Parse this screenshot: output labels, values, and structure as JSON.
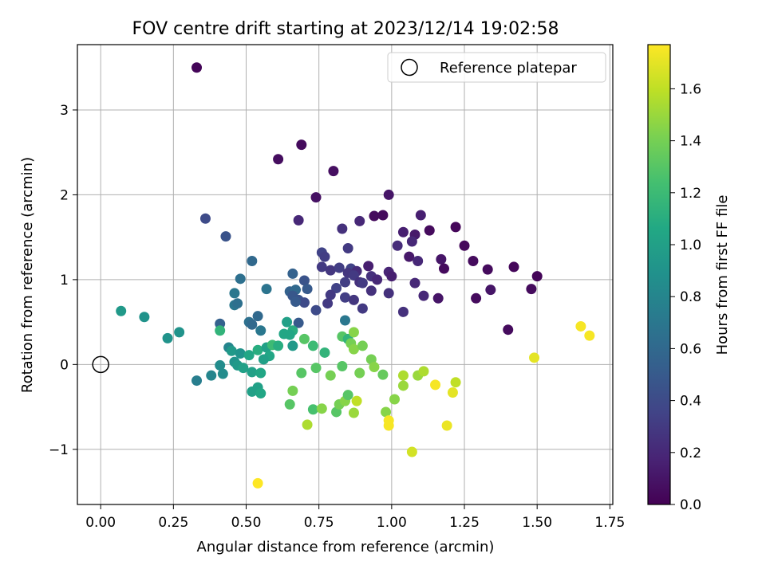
{
  "chart_data": {
    "type": "scatter",
    "title": "FOV centre drift starting at 2023/12/14 19:02:58",
    "xlabel": "Angular distance from reference (arcmin)",
    "ylabel": "Rotation from reference (arcmin)",
    "xlim": [
      -0.08,
      1.76
    ],
    "ylim": [
      -1.65,
      3.77
    ],
    "xticks": [
      0.0,
      0.25,
      0.5,
      0.75,
      1.0,
      1.25,
      1.5,
      1.75
    ],
    "xtick_labels": [
      "0.00",
      "0.25",
      "0.50",
      "0.75",
      "1.00",
      "1.25",
      "1.50",
      "1.75"
    ],
    "yticks": [
      -1,
      0,
      1,
      2,
      3
    ],
    "ytick_labels": [
      "−1",
      "0",
      "1",
      "2",
      "3"
    ],
    "grid": true,
    "legend": {
      "position": "top-right",
      "entries": [
        "Reference platepar"
      ]
    },
    "reference": {
      "name": "Reference platepar",
      "x": 0.0,
      "y": 0.0,
      "marker": "open-circle"
    },
    "colorbar": {
      "label": "Hours from first FF file",
      "colormap": "viridis",
      "range": [
        0.0,
        1.77
      ],
      "ticks": [
        0.0,
        0.2,
        0.4,
        0.6,
        0.8,
        1.0,
        1.2,
        1.4,
        1.6
      ],
      "tick_labels": [
        "0.0",
        "0.2",
        "0.4",
        "0.6",
        "0.8",
        "1.0",
        "1.2",
        "1.4",
        "1.6"
      ]
    },
    "points": [
      {
        "x": 0.33,
        "y": 3.5,
        "c": 0.02
      },
      {
        "x": 0.69,
        "y": 2.59,
        "c": 0.05
      },
      {
        "x": 0.61,
        "y": 2.42,
        "c": 0.06
      },
      {
        "x": 0.8,
        "y": 2.28,
        "c": 0.07
      },
      {
        "x": 0.74,
        "y": 1.97,
        "c": 0.08
      },
      {
        "x": 0.99,
        "y": 2.0,
        "c": 0.1
      },
      {
        "x": 0.94,
        "y": 1.75,
        "c": 0.05
      },
      {
        "x": 0.97,
        "y": 1.76,
        "c": 0.05
      },
      {
        "x": 1.1,
        "y": 1.76,
        "c": 0.15
      },
      {
        "x": 0.68,
        "y": 1.7,
        "c": 0.2
      },
      {
        "x": 0.89,
        "y": 1.69,
        "c": 0.2
      },
      {
        "x": 0.83,
        "y": 1.6,
        "c": 0.25
      },
      {
        "x": 1.04,
        "y": 1.56,
        "c": 0.15
      },
      {
        "x": 1.08,
        "y": 1.53,
        "c": 0.12
      },
      {
        "x": 1.13,
        "y": 1.58,
        "c": 0.05
      },
      {
        "x": 1.22,
        "y": 1.62,
        "c": 0.03
      },
      {
        "x": 0.36,
        "y": 1.72,
        "c": 0.4
      },
      {
        "x": 0.43,
        "y": 1.51,
        "c": 0.45
      },
      {
        "x": 1.02,
        "y": 1.4,
        "c": 0.22
      },
      {
        "x": 1.07,
        "y": 1.45,
        "c": 0.2
      },
      {
        "x": 1.25,
        "y": 1.4,
        "c": 0.04
      },
      {
        "x": 0.85,
        "y": 1.37,
        "c": 0.3
      },
      {
        "x": 0.76,
        "y": 1.32,
        "c": 0.35
      },
      {
        "x": 0.77,
        "y": 1.27,
        "c": 0.32
      },
      {
        "x": 1.06,
        "y": 1.27,
        "c": 0.12
      },
      {
        "x": 1.09,
        "y": 1.22,
        "c": 0.2
      },
      {
        "x": 1.17,
        "y": 1.24,
        "c": 0.1
      },
      {
        "x": 1.28,
        "y": 1.22,
        "c": 0.05
      },
      {
        "x": 1.33,
        "y": 1.12,
        "c": 0.05
      },
      {
        "x": 1.42,
        "y": 1.15,
        "c": 0.03
      },
      {
        "x": 1.18,
        "y": 1.13,
        "c": 0.05
      },
      {
        "x": 0.76,
        "y": 1.15,
        "c": 0.3
      },
      {
        "x": 0.79,
        "y": 1.11,
        "c": 0.28
      },
      {
        "x": 0.82,
        "y": 1.14,
        "c": 0.32
      },
      {
        "x": 0.86,
        "y": 1.13,
        "c": 0.35
      },
      {
        "x": 0.88,
        "y": 1.1,
        "c": 0.22
      },
      {
        "x": 0.92,
        "y": 1.16,
        "c": 0.15
      },
      {
        "x": 0.85,
        "y": 1.08,
        "c": 0.28
      },
      {
        "x": 0.87,
        "y": 1.05,
        "c": 0.3
      },
      {
        "x": 0.93,
        "y": 1.04,
        "c": 0.25
      },
      {
        "x": 0.95,
        "y": 1.0,
        "c": 0.2
      },
      {
        "x": 0.99,
        "y": 1.09,
        "c": 0.18
      },
      {
        "x": 1.0,
        "y": 1.04,
        "c": 0.15
      },
      {
        "x": 0.89,
        "y": 0.97,
        "c": 0.25
      },
      {
        "x": 0.9,
        "y": 0.96,
        "c": 0.3
      },
      {
        "x": 0.84,
        "y": 0.97,
        "c": 0.32
      },
      {
        "x": 0.81,
        "y": 0.9,
        "c": 0.35
      },
      {
        "x": 1.5,
        "y": 1.04,
        "c": 0.02
      },
      {
        "x": 1.08,
        "y": 0.96,
        "c": 0.2
      },
      {
        "x": 0.52,
        "y": 1.22,
        "c": 0.6
      },
      {
        "x": 0.66,
        "y": 1.07,
        "c": 0.55
      },
      {
        "x": 0.7,
        "y": 0.99,
        "c": 0.45
      },
      {
        "x": 0.48,
        "y": 1.01,
        "c": 0.65
      },
      {
        "x": 0.57,
        "y": 0.89,
        "c": 0.68
      },
      {
        "x": 0.65,
        "y": 0.86,
        "c": 0.55
      },
      {
        "x": 0.67,
        "y": 0.88,
        "c": 0.6
      },
      {
        "x": 0.71,
        "y": 0.89,
        "c": 0.5
      },
      {
        "x": 0.66,
        "y": 0.81,
        "c": 0.48
      },
      {
        "x": 0.68,
        "y": 0.76,
        "c": 0.45
      },
      {
        "x": 0.7,
        "y": 0.73,
        "c": 0.4
      },
      {
        "x": 0.67,
        "y": 0.74,
        "c": 0.5
      },
      {
        "x": 0.79,
        "y": 0.82,
        "c": 0.3
      },
      {
        "x": 0.84,
        "y": 0.79,
        "c": 0.32
      },
      {
        "x": 0.87,
        "y": 0.76,
        "c": 0.28
      },
      {
        "x": 0.78,
        "y": 0.72,
        "c": 0.3
      },
      {
        "x": 0.93,
        "y": 0.87,
        "c": 0.25
      },
      {
        "x": 0.99,
        "y": 0.84,
        "c": 0.25
      },
      {
        "x": 1.11,
        "y": 0.81,
        "c": 0.2
      },
      {
        "x": 1.16,
        "y": 0.78,
        "c": 0.1
      },
      {
        "x": 1.34,
        "y": 0.88,
        "c": 0.1
      },
      {
        "x": 1.29,
        "y": 0.78,
        "c": 0.05
      },
      {
        "x": 1.48,
        "y": 0.89,
        "c": 0.05
      },
      {
        "x": 0.9,
        "y": 0.66,
        "c": 0.3
      },
      {
        "x": 0.74,
        "y": 0.64,
        "c": 0.4
      },
      {
        "x": 1.04,
        "y": 0.62,
        "c": 0.25
      },
      {
        "x": 0.46,
        "y": 0.84,
        "c": 0.7
      },
      {
        "x": 0.46,
        "y": 0.7,
        "c": 0.7
      },
      {
        "x": 0.47,
        "y": 0.72,
        "c": 0.65
      },
      {
        "x": 0.54,
        "y": 0.57,
        "c": 0.6
      },
      {
        "x": 0.51,
        "y": 0.5,
        "c": 0.65
      },
      {
        "x": 0.52,
        "y": 0.47,
        "c": 0.6
      },
      {
        "x": 0.55,
        "y": 0.4,
        "c": 0.7
      },
      {
        "x": 0.41,
        "y": 0.48,
        "c": 0.55
      },
      {
        "x": 0.68,
        "y": 0.49,
        "c": 0.5
      },
      {
        "x": 0.84,
        "y": 0.52,
        "c": 0.7
      },
      {
        "x": 0.64,
        "y": 0.5,
        "c": 1.0
      },
      {
        "x": 0.66,
        "y": 0.4,
        "c": 1.1
      },
      {
        "x": 0.65,
        "y": 0.35,
        "c": 1.05
      },
      {
        "x": 0.63,
        "y": 0.36,
        "c": 1.05
      },
      {
        "x": 0.41,
        "y": 0.4,
        "c": 1.15
      },
      {
        "x": 0.07,
        "y": 0.63,
        "c": 0.95
      },
      {
        "x": 0.15,
        "y": 0.56,
        "c": 0.9
      },
      {
        "x": 0.27,
        "y": 0.38,
        "c": 0.9
      },
      {
        "x": 0.23,
        "y": 0.31,
        "c": 0.9
      },
      {
        "x": 0.44,
        "y": 0.2,
        "c": 0.8
      },
      {
        "x": 0.45,
        "y": 0.16,
        "c": 0.95
      },
      {
        "x": 0.48,
        "y": 0.13,
        "c": 0.9
      },
      {
        "x": 0.51,
        "y": 0.11,
        "c": 1.05
      },
      {
        "x": 0.54,
        "y": 0.17,
        "c": 1.1
      },
      {
        "x": 0.57,
        "y": 0.2,
        "c": 1.0
      },
      {
        "x": 0.59,
        "y": 0.23,
        "c": 1.2
      },
      {
        "x": 0.61,
        "y": 0.22,
        "c": 1.1
      },
      {
        "x": 0.58,
        "y": 0.1,
        "c": 1.05
      },
      {
        "x": 0.56,
        "y": 0.06,
        "c": 1.0
      },
      {
        "x": 0.66,
        "y": 0.22,
        "c": 0.95
      },
      {
        "x": 0.7,
        "y": 0.3,
        "c": 1.3
      },
      {
        "x": 0.73,
        "y": 0.22,
        "c": 1.2
      },
      {
        "x": 0.77,
        "y": 0.14,
        "c": 1.15
      },
      {
        "x": 0.83,
        "y": 0.33,
        "c": 1.3
      },
      {
        "x": 0.85,
        "y": 0.3,
        "c": 1.15
      },
      {
        "x": 0.87,
        "y": 0.38,
        "c": 1.45
      },
      {
        "x": 0.86,
        "y": 0.25,
        "c": 1.4
      },
      {
        "x": 0.87,
        "y": 0.18,
        "c": 1.45
      },
      {
        "x": 0.9,
        "y": 0.22,
        "c": 1.4
      },
      {
        "x": 0.93,
        "y": 0.06,
        "c": 1.4
      },
      {
        "x": 0.94,
        "y": -0.03,
        "c": 1.45
      },
      {
        "x": 0.89,
        "y": -0.1,
        "c": 1.4
      },
      {
        "x": 0.97,
        "y": -0.12,
        "c": 1.35
      },
      {
        "x": 0.46,
        "y": 0.03,
        "c": 0.9
      },
      {
        "x": 0.47,
        "y": -0.01,
        "c": 0.95
      },
      {
        "x": 0.49,
        "y": -0.04,
        "c": 1.0
      },
      {
        "x": 0.41,
        "y": -0.01,
        "c": 0.85
      },
      {
        "x": 0.42,
        "y": -0.11,
        "c": 0.85
      },
      {
        "x": 0.38,
        "y": -0.13,
        "c": 0.8
      },
      {
        "x": 0.33,
        "y": -0.19,
        "c": 0.75
      },
      {
        "x": 0.52,
        "y": -0.09,
        "c": 1.0
      },
      {
        "x": 0.55,
        "y": -0.1,
        "c": 1.05
      },
      {
        "x": 0.54,
        "y": -0.27,
        "c": 1.0
      },
      {
        "x": 0.52,
        "y": -0.32,
        "c": 1.0
      },
      {
        "x": 0.55,
        "y": -0.34,
        "c": 1.05
      },
      {
        "x": 0.69,
        "y": -0.1,
        "c": 1.3
      },
      {
        "x": 0.74,
        "y": -0.04,
        "c": 1.3
      },
      {
        "x": 0.79,
        "y": -0.13,
        "c": 1.4
      },
      {
        "x": 0.83,
        "y": -0.02,
        "c": 1.3
      },
      {
        "x": 0.66,
        "y": -0.31,
        "c": 1.4
      },
      {
        "x": 0.65,
        "y": -0.47,
        "c": 1.3
      },
      {
        "x": 0.73,
        "y": -0.53,
        "c": 1.25
      },
      {
        "x": 0.76,
        "y": -0.52,
        "c": 1.45
      },
      {
        "x": 0.71,
        "y": -0.71,
        "c": 1.55
      },
      {
        "x": 0.81,
        "y": -0.56,
        "c": 1.3
      },
      {
        "x": 0.82,
        "y": -0.47,
        "c": 1.4
      },
      {
        "x": 0.84,
        "y": -0.43,
        "c": 1.45
      },
      {
        "x": 0.85,
        "y": -0.36,
        "c": 1.3
      },
      {
        "x": 0.87,
        "y": -0.57,
        "c": 1.5
      },
      {
        "x": 0.88,
        "y": -0.43,
        "c": 1.6
      },
      {
        "x": 0.98,
        "y": -0.56,
        "c": 1.45
      },
      {
        "x": 0.99,
        "y": -0.66,
        "c": 1.75
      },
      {
        "x": 0.99,
        "y": -0.72,
        "c": 1.75
      },
      {
        "x": 1.01,
        "y": -0.41,
        "c": 1.45
      },
      {
        "x": 1.04,
        "y": -0.13,
        "c": 1.55
      },
      {
        "x": 1.04,
        "y": -0.25,
        "c": 1.5
      },
      {
        "x": 1.09,
        "y": -0.13,
        "c": 1.5
      },
      {
        "x": 1.11,
        "y": -0.08,
        "c": 1.55
      },
      {
        "x": 1.15,
        "y": -0.24,
        "c": 1.75
      },
      {
        "x": 1.21,
        "y": -0.33,
        "c": 1.7
      },
      {
        "x": 1.22,
        "y": -0.21,
        "c": 1.6
      },
      {
        "x": 1.19,
        "y": -0.72,
        "c": 1.72
      },
      {
        "x": 1.07,
        "y": -1.03,
        "c": 1.65
      },
      {
        "x": 0.54,
        "y": -1.4,
        "c": 1.77
      },
      {
        "x": 1.4,
        "y": 0.41,
        "c": 0.05
      },
      {
        "x": 1.49,
        "y": 0.08,
        "c": 1.7
      },
      {
        "x": 1.65,
        "y": 0.45,
        "c": 1.75
      },
      {
        "x": 1.68,
        "y": 0.34,
        "c": 1.75
      }
    ]
  }
}
